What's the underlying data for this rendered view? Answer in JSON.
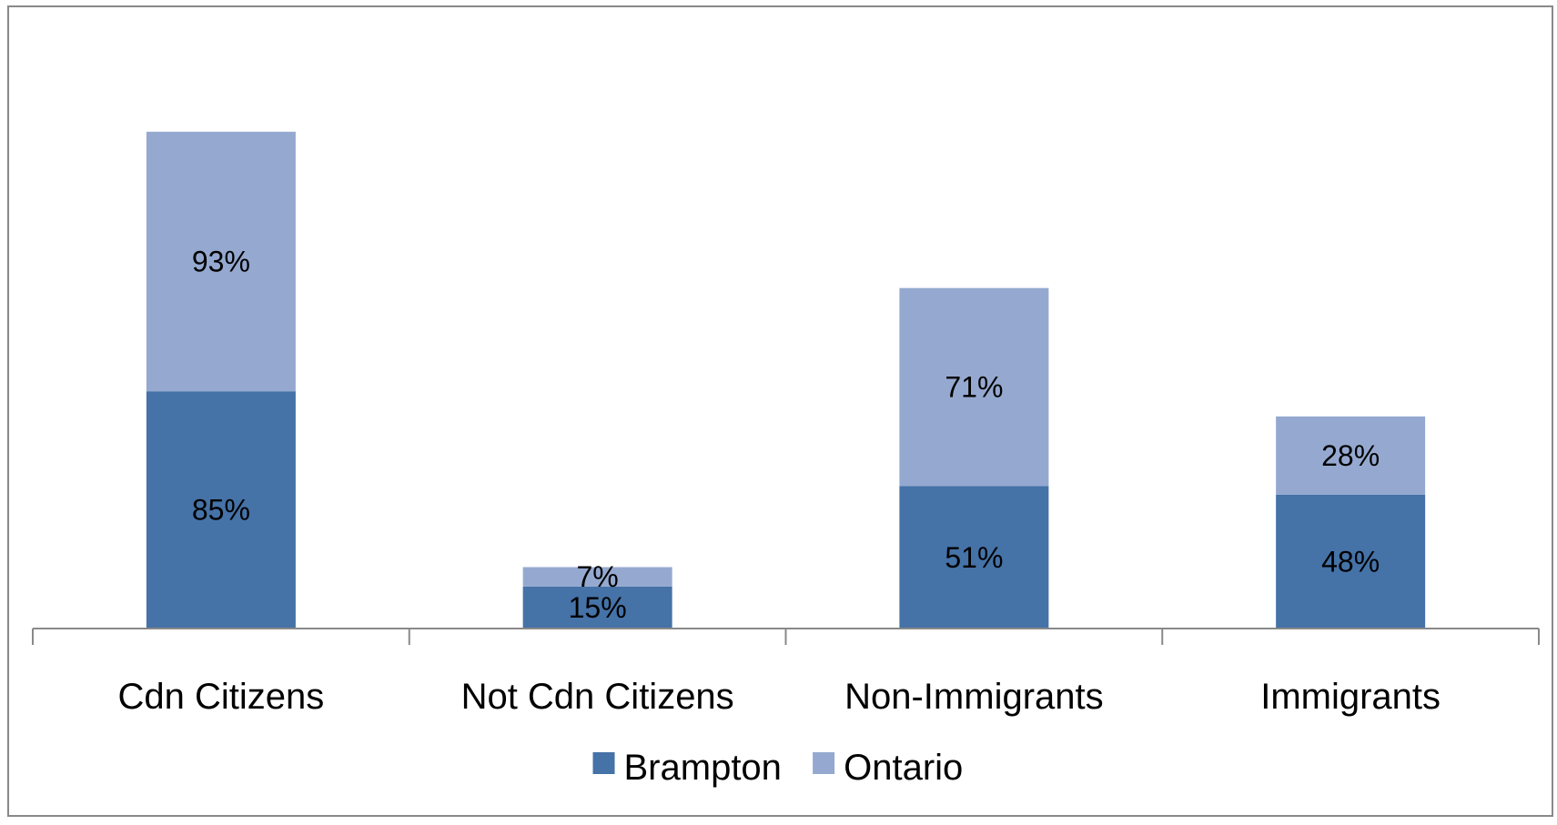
{
  "chart_data": {
    "type": "bar",
    "stacked": true,
    "categories": [
      "Cdn Citizens",
      "Not Cdn Citizens",
      "Non-Immigrants",
      "Immigrants"
    ],
    "series": [
      {
        "name": "Brampton",
        "values": [
          85,
          15,
          51,
          48
        ],
        "labels": [
          "85%",
          "15%",
          "51%",
          "48%"
        ]
      },
      {
        "name": "Ontario",
        "values": [
          93,
          7,
          71,
          28
        ],
        "labels": [
          "93%",
          "7%",
          "71%",
          "28%"
        ]
      }
    ],
    "ylim": [
      0,
      190
    ],
    "grid": false,
    "legend_position": "bottom",
    "colors": {
      "Brampton": "#4572A7",
      "Ontario": "#95A9D0",
      "axis": "#898989",
      "border": "#898989",
      "text": "#000000"
    }
  }
}
